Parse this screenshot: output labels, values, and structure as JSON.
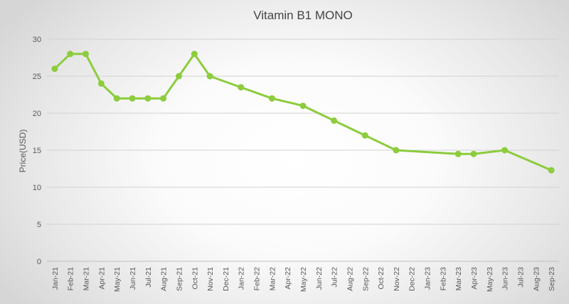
{
  "chart_data": {
    "type": "line",
    "title": "Vitamin B1 MONO",
    "xlabel": "",
    "ylabel": "Price(USD)",
    "ylim": [
      0,
      30
    ],
    "yticks": [
      0,
      5,
      10,
      15,
      20,
      25,
      30
    ],
    "grid": true,
    "legend": "none",
    "categories": [
      "Jan-21",
      "Feb-21",
      "Mar-21",
      "Apr-21",
      "May-21",
      "Jun-21",
      "Jul-21",
      "Aug-21",
      "Sep-21",
      "Oct-21",
      "Nov-21",
      "Dec-21",
      "Jan-22",
      "Feb-22",
      "Mar-22",
      "Apr-22",
      "May-22",
      "Jun-22",
      "Jul-22",
      "Aug-22",
      "Sep-22",
      "Oct-22",
      "Nov-22",
      "Dec-22",
      "Jan-23",
      "Feb-23",
      "Mar-23",
      "Apr-23",
      "May-23",
      "Jun-23",
      "Jul-23",
      "Aug-23",
      "Sep-23"
    ],
    "series": [
      {
        "name": "Vitamin B1 MONO",
        "color": "#8ccc3d",
        "points": [
          {
            "x": "Jan-21",
            "y": 26
          },
          {
            "x": "Feb-21",
            "y": 28
          },
          {
            "x": "Mar-21",
            "y": 28
          },
          {
            "x": "Apr-21",
            "y": 24
          },
          {
            "x": "May-21",
            "y": 22
          },
          {
            "x": "Jun-21",
            "y": 22
          },
          {
            "x": "Jul-21",
            "y": 22
          },
          {
            "x": "Aug-21",
            "y": 22
          },
          {
            "x": "Sep-21",
            "y": 25
          },
          {
            "x": "Oct-21",
            "y": 28
          },
          {
            "x": "Nov-21",
            "y": 25
          },
          {
            "x": "Jan-22",
            "y": 23.5
          },
          {
            "x": "Mar-22",
            "y": 22
          },
          {
            "x": "May-22",
            "y": 21
          },
          {
            "x": "Jul-22",
            "y": 19
          },
          {
            "x": "Sep-22",
            "y": 17
          },
          {
            "x": "Nov-22",
            "y": 15
          },
          {
            "x": "Mar-23",
            "y": 14.5
          },
          {
            "x": "Apr-23",
            "y": 14.5
          },
          {
            "x": "Jun-23",
            "y": 15
          },
          {
            "x": "Sep-23",
            "y": 12.3
          }
        ]
      }
    ]
  }
}
